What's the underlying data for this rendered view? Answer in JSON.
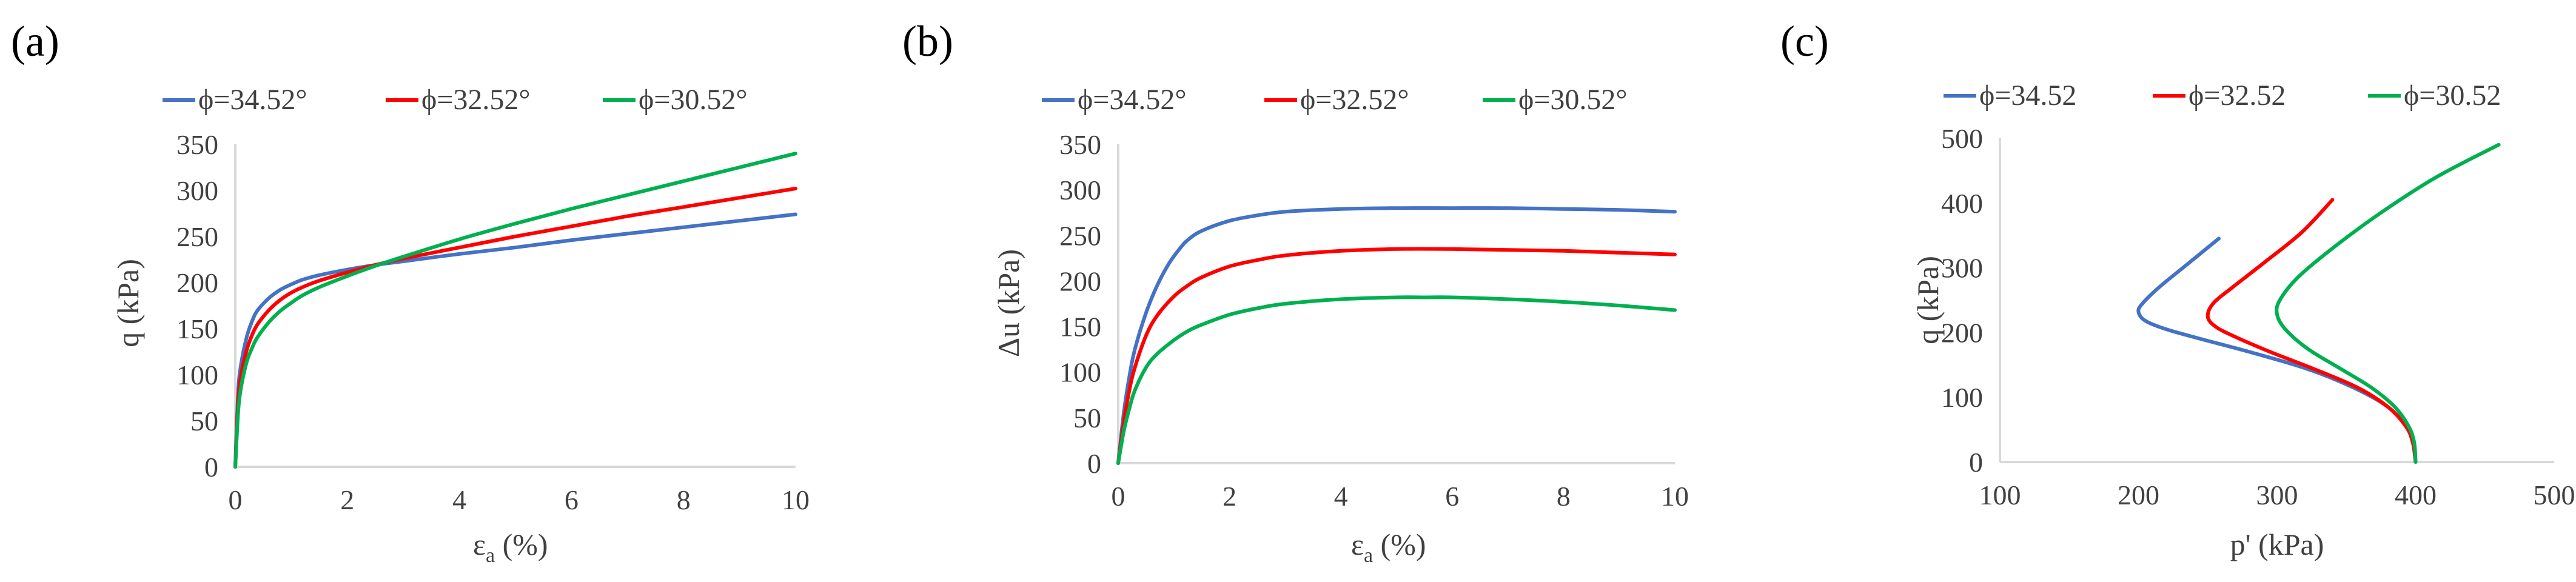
{
  "panels": [
    {
      "label": "(a)",
      "legend": [
        "ϕ=34.52°",
        "ϕ=32.52°",
        "ϕ=30.52°"
      ],
      "chart_data": {
        "type": "line",
        "xlabel": "εa (%)",
        "xlabel_main": "ε",
        "xlabel_sub": "a",
        "xlabel_tail": " (%)",
        "ylabel": "q (kPa)",
        "xlim": [
          0,
          10
        ],
        "ylim": [
          0,
          350
        ],
        "xticks": [
          0,
          2,
          4,
          6,
          8,
          10
        ],
        "yticks": [
          0,
          50,
          100,
          150,
          200,
          250,
          300,
          350
        ],
        "series": [
          {
            "name": "ϕ=34.52°",
            "color": "#4472c4",
            "x": [
              0,
              0.05,
              0.1,
              0.2,
              0.3,
              0.4,
              0.6,
              0.8,
              1.0,
              1.2,
              1.5,
              2,
              2.5,
              3,
              4,
              5,
              6,
              7,
              8,
              9,
              10
            ],
            "y": [
              0,
              80,
              110,
              140,
              158,
              170,
              183,
              192,
              198,
              203,
              208,
              214,
              219,
              223,
              231,
              238,
              246,
              253,
              260,
              267,
              274
            ]
          },
          {
            "name": "ϕ=32.52°",
            "color": "#ff0000",
            "x": [
              0,
              0.05,
              0.1,
              0.2,
              0.3,
              0.4,
              0.6,
              0.8,
              1.0,
              1.2,
              1.5,
              2,
              2.5,
              3,
              4,
              5,
              6,
              7,
              8,
              9,
              10
            ],
            "y": [
              0,
              70,
              98,
              126,
              143,
              155,
              170,
              181,
              189,
              195,
              202,
              211,
              219,
              226,
              238,
              250,
              261,
              272,
              282,
              292,
              302
            ]
          },
          {
            "name": "ϕ=30.52°",
            "color": "#00b050",
            "x": [
              0,
              0.05,
              0.1,
              0.2,
              0.3,
              0.4,
              0.6,
              0.8,
              1.0,
              1.2,
              1.5,
              2,
              2.5,
              3,
              4,
              5,
              6,
              7,
              8,
              9,
              10
            ],
            "y": [
              0,
              58,
              85,
              113,
              129,
              141,
              157,
              169,
              178,
              186,
              195,
              207,
              218,
              228,
              247,
              264,
              280,
              295,
              310,
              325,
              340
            ]
          }
        ]
      }
    },
    {
      "label": "(b)",
      "legend": [
        "ϕ=34.52°",
        "ϕ=32.52°",
        "ϕ=30.52°"
      ],
      "chart_data": {
        "type": "line",
        "xlabel": "εa (%)",
        "xlabel_main": "ε",
        "xlabel_sub": "a",
        "xlabel_tail": " (%)",
        "ylabel": "Δu (kPa)",
        "xlim": [
          0,
          10
        ],
        "ylim": [
          0,
          350
        ],
        "xticks": [
          0,
          2,
          4,
          6,
          8,
          10
        ],
        "yticks": [
          0,
          50,
          100,
          150,
          200,
          250,
          300,
          350
        ],
        "series": [
          {
            "name": "ϕ=34.52°",
            "color": "#4472c4",
            "x": [
              0,
              0.1,
              0.2,
              0.3,
              0.5,
              0.7,
              0.9,
              1.1,
              1.25,
              1.5,
              2,
              2.5,
              3,
              4,
              5,
              6,
              7,
              8,
              9,
              10
            ],
            "y": [
              0,
              55,
              95,
              125,
              165,
              195,
              218,
              235,
              245,
              255,
              266,
              272,
              276,
              279,
              280,
              280,
              280,
              279,
              278,
              276
            ]
          },
          {
            "name": "ϕ=32.52°",
            "color": "#ff0000",
            "x": [
              0,
              0.1,
              0.2,
              0.3,
              0.5,
              0.7,
              1.0,
              1.25,
              1.5,
              2,
              2.5,
              3,
              4,
              5,
              6,
              7,
              8,
              9,
              10
            ],
            "y": [
              0,
              45,
              80,
              105,
              140,
              162,
              183,
              195,
              204,
              216,
              223,
              228,
              233,
              235,
              235,
              234,
              233,
              231,
              229
            ]
          },
          {
            "name": "ϕ=30.52°",
            "color": "#00b050",
            "x": [
              0,
              0.1,
              0.2,
              0.3,
              0.5,
              0.7,
              1.0,
              1.25,
              1.5,
              2,
              2.5,
              3,
              4,
              5,
              5.5,
              6,
              7,
              8,
              9,
              10
            ],
            "y": [
              0,
              35,
              60,
              80,
              105,
              120,
              135,
              145,
              152,
              163,
              170,
              175,
              180,
              182,
              182,
              182,
              180,
              177,
              173,
              168
            ]
          }
        ]
      }
    },
    {
      "label": "(c)",
      "legend": [
        "ϕ=34.52",
        "ϕ=32.52",
        "ϕ=30.52"
      ],
      "chart_data": {
        "type": "line",
        "xlabel": "p' (kPa)",
        "ylabel": "q (kPa)",
        "xlim": [
          100,
          500
        ],
        "ylim": [
          0,
          500
        ],
        "xticks": [
          100,
          200,
          300,
          400,
          500
        ],
        "yticks": [
          0,
          100,
          200,
          300,
          400,
          500
        ],
        "series": [
          {
            "name": "ϕ=34.52",
            "color": "#4472c4",
            "x": [
              400,
              398,
              393,
              380,
              355,
              320,
              280,
              245,
              220,
              205,
              200,
              203,
              215,
              235,
              258
            ],
            "y": [
              0,
              30,
              55,
              85,
              115,
              145,
              170,
              190,
              205,
              218,
              232,
              245,
              270,
              305,
              345
            ]
          },
          {
            "name": "ϕ=32.52",
            "color": "#ff0000",
            "x": [
              400,
              398,
              393,
              380,
              358,
              325,
              295,
              268,
              255,
              250,
              254,
              268,
              292,
              318,
              340
            ],
            "y": [
              0,
              30,
              55,
              85,
              115,
              145,
              170,
              195,
              210,
              225,
              245,
              270,
              310,
              355,
              405
            ]
          },
          {
            "name": "ϕ=30.52",
            "color": "#00b050",
            "x": [
              400,
              399,
              395,
              385,
              368,
              345,
              322,
              306,
              300,
              302,
              315,
              340,
              375,
              415,
              460
            ],
            "y": [
              0,
              30,
              55,
              85,
              115,
              145,
              175,
              205,
              228,
              250,
              285,
              330,
              385,
              440,
              490
            ]
          }
        ]
      }
    }
  ]
}
